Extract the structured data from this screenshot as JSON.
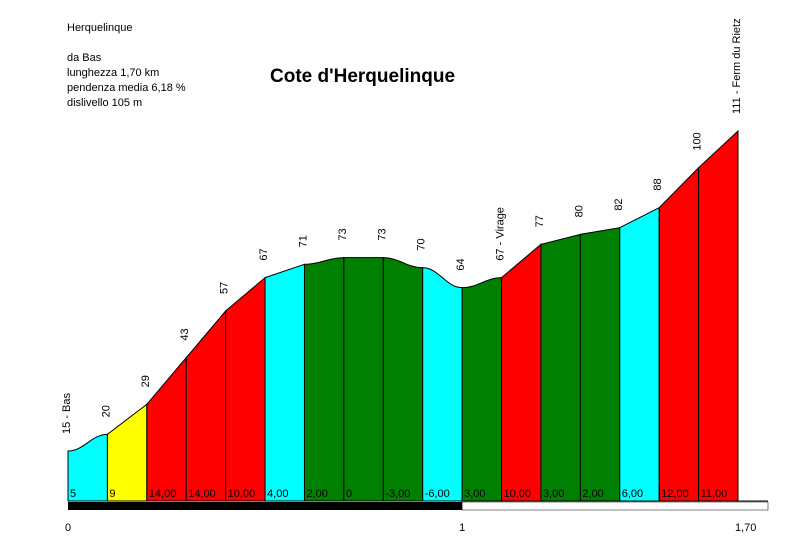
{
  "info": {
    "place": "Herquelinque",
    "from": "da Bas",
    "length": "lunghezza 1,70 km",
    "gradient": "pendenza media 6,18 %",
    "climb": "dislivello 105 m"
  },
  "chart_data": {
    "type": "area",
    "title": "Cote d'Herquelinque",
    "altitude_labels": [
      "15 - Bas",
      "20",
      "29",
      "43",
      "57",
      "67",
      "71",
      "73",
      "73",
      "70",
      "64",
      "67 - Virage",
      "77",
      "80",
      "82",
      "88",
      "100",
      "111 - Ferm du Rietz"
    ],
    "altitudes": [
      15,
      20,
      29,
      43,
      57,
      67,
      71,
      73,
      73,
      70,
      64,
      67,
      77,
      80,
      82,
      88,
      100,
      111
    ],
    "segment_gradients": [
      "5",
      "9",
      "14,00",
      "14,00",
      "10,00",
      "4,00",
      "2,00",
      "0",
      "-3,00",
      "-6,00",
      "3,00",
      "10,00",
      "3,00",
      "2,00",
      "6,00",
      "12,00",
      "11,00"
    ],
    "segment_colors": [
      "#00ffff",
      "#ffff00",
      "#ff0000",
      "#ff0000",
      "#ff0000",
      "#00ffff",
      "#008000",
      "#008000",
      "#008000",
      "#00ffff",
      "#008000",
      "#ff0000",
      "#008000",
      "#008000",
      "#00ffff",
      "#ff0000",
      "#ff0000"
    ],
    "x_ticks": [
      "0",
      "1",
      "1,70"
    ],
    "x_tick_values": [
      0,
      1,
      1.7
    ],
    "distance_km": 1.7
  }
}
